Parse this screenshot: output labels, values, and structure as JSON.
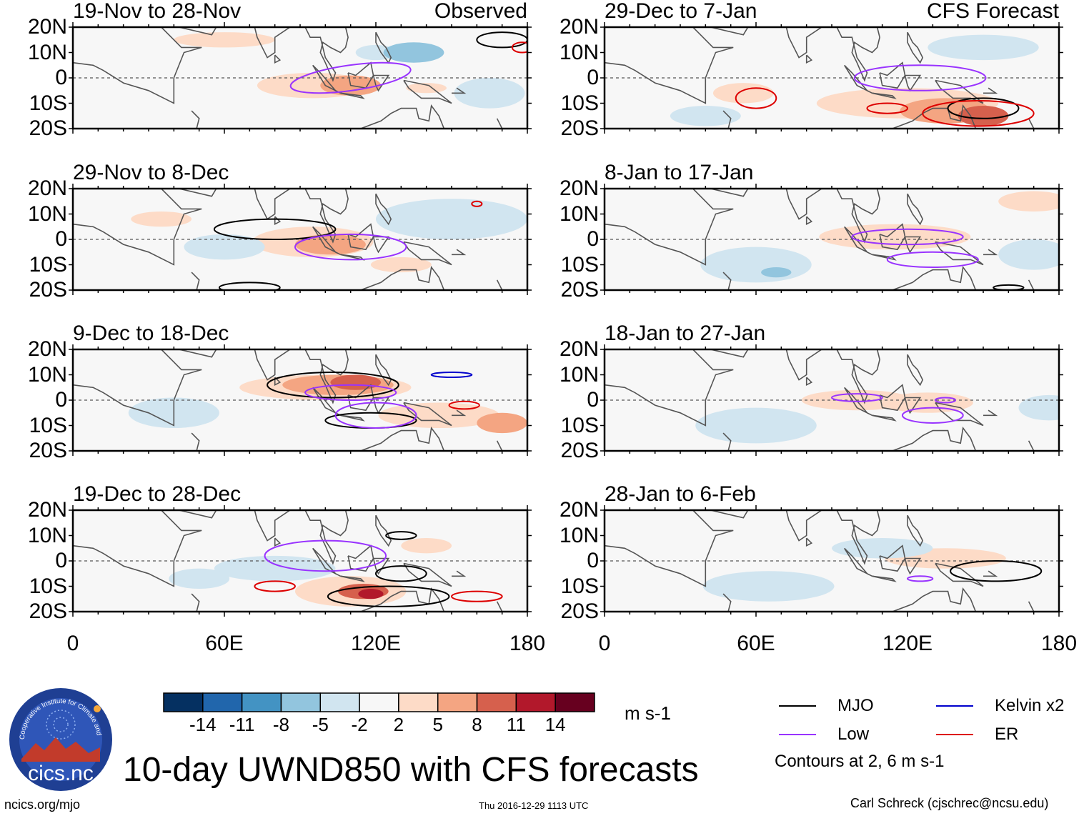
{
  "header": {
    "observed_label": "Observed",
    "forecast_label": "CFS Forecast"
  },
  "chart_data": {
    "type": "heatmap",
    "title": "10-day UWND850 with CFS forecasts",
    "variable": "UWND850",
    "units": "m s-1",
    "x_ticks": [
      "0",
      "60E",
      "120E",
      "180"
    ],
    "y_ticks": [
      "20N",
      "10N",
      "0",
      "10S",
      "20S"
    ],
    "xlim": [
      0,
      180
    ],
    "ylim": [
      -20,
      20
    ],
    "colorbar": {
      "levels": [
        "-14",
        "-11",
        "-8",
        "-5",
        "-2",
        "2",
        "5",
        "8",
        "11",
        "14"
      ],
      "colors": [
        "#053061",
        "#2166ac",
        "#4393c3",
        "#92c5de",
        "#d1e5f0",
        "#f7f7f7",
        "#fddbc7",
        "#f4a582",
        "#d6604d",
        "#b2182b",
        "#67001f"
      ]
    },
    "legend": [
      {
        "name": "MJO",
        "color": "#000000"
      },
      {
        "name": "Kelvin x2",
        "color": "#0000cc"
      },
      {
        "name": "Low",
        "color": "#9933ff"
      },
      {
        "name": "ER",
        "color": "#dd0000"
      }
    ],
    "contour_note": "Contours at 2, 6 m s-1",
    "panels": [
      {
        "period": "19-Nov to 28-Nov",
        "source": "Observed"
      },
      {
        "period": "29-Nov to 8-Dec",
        "source": "Observed"
      },
      {
        "period": "9-Dec to 18-Dec",
        "source": "Observed"
      },
      {
        "period": "19-Dec to 28-Dec",
        "source": "Observed"
      },
      {
        "period": "29-Dec to 7-Jan",
        "source": "CFS Forecast"
      },
      {
        "period": "8-Jan to 17-Jan",
        "source": "CFS Forecast"
      },
      {
        "period": "18-Jan to 27-Jan",
        "source": "CFS Forecast"
      },
      {
        "period": "28-Jan to 6-Feb",
        "source": "CFS Forecast"
      }
    ]
  },
  "footer": {
    "logo_text": "cics.nc",
    "logo_ring_text": "Cooperative Institute for Climate and Satellites",
    "url": "ncics.org/mjo",
    "timestamp": "Thu 2016-12-29 1113 UTC",
    "author": "Carl Schreck (cjschrec@ncsu.edu)"
  }
}
